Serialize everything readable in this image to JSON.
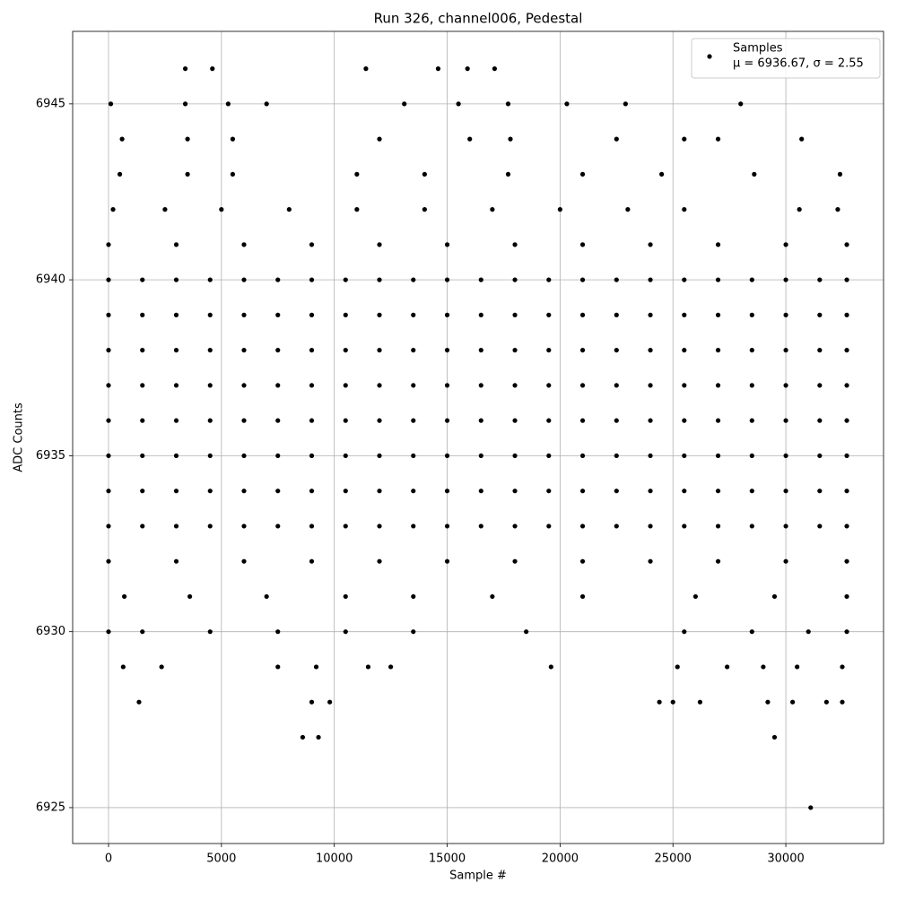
{
  "chart_data": {
    "type": "scatter",
    "title": "Run 326, channel006, Pedestal",
    "x_label": "Sample #",
    "y_label": "ADC Counts",
    "xlim": [
      -1589,
      34328
    ],
    "ylim": [
      6923.98,
      6947.06
    ],
    "xticks": [
      0,
      5000,
      10000,
      15000,
      20000,
      25000,
      30000
    ],
    "yticks": [
      6925,
      6930,
      6935,
      6940,
      6945
    ],
    "grid": true,
    "legend": "upper right",
    "legend_note": "μ = 6936.67, σ = 2.55",
    "series": [
      {
        "name": "Samples",
        "color": "#000000",
        "x": [
          0,
          1500,
          3000,
          4500,
          6000,
          7500,
          9000,
          10500,
          12000,
          13500,
          15000,
          16500,
          18000,
          19500,
          21000,
          22500,
          24000,
          25500,
          27000,
          28500,
          30000,
          31500,
          32700,
          0,
          1500,
          3000,
          4500,
          6000,
          7500,
          9000,
          10500,
          12000,
          13500,
          15000,
          16500,
          18000,
          19500,
          21000,
          22500,
          24000,
          25500,
          27000,
          28500,
          30000,
          31500,
          32700,
          0,
          1500,
          3000,
          4500,
          6000,
          7500,
          9000,
          10500,
          12000,
          13500,
          15000,
          16500,
          18000,
          19500,
          21000,
          22500,
          24000,
          25500,
          27000,
          28500,
          30000,
          31500,
          32700,
          0,
          1500,
          3000,
          4500,
          6000,
          7500,
          9000,
          10500,
          12000,
          13500,
          15000,
          16500,
          18000,
          19500,
          21000,
          22500,
          24000,
          25500,
          27000,
          28500,
          30000,
          31500,
          32700,
          0,
          1500,
          3000,
          4500,
          6000,
          7500,
          9000,
          10500,
          12000,
          13500,
          15000,
          16500,
          18000,
          19500,
          21000,
          22500,
          24000,
          25500,
          27000,
          28500,
          30000,
          31500,
          32700,
          0,
          1500,
          3000,
          4500,
          6000,
          7500,
          9000,
          10500,
          12000,
          13500,
          15000,
          16500,
          18000,
          19500,
          21000,
          22500,
          24000,
          25500,
          27000,
          28500,
          30000,
          31500,
          32700,
          0,
          1500,
          3000,
          4500,
          6000,
          7500,
          9000,
          10500,
          12000,
          13500,
          15000,
          16500,
          18000,
          19500,
          21000,
          22500,
          24000,
          25500,
          27000,
          28500,
          30000,
          31500,
          32700,
          0,
          1500,
          3000,
          4500,
          6000,
          7500,
          9000,
          10500,
          12000,
          13500,
          15000,
          16500,
          18000,
          19500,
          21000,
          22500,
          24000,
          25500,
          27000,
          28500,
          30000,
          31500,
          32700,
          0,
          3000,
          6000,
          9000,
          12000,
          15000,
          18000,
          21000,
          24000,
          27000,
          30000,
          32700,
          0,
          3000,
          6000,
          9000,
          12000,
          15000,
          18000,
          21000,
          24000,
          27000,
          30000,
          32700,
          700,
          3600,
          7000,
          10500,
          13500,
          17000,
          21000,
          26000,
          29500,
          32700,
          200,
          2500,
          5000,
          8000,
          11000,
          14000,
          17000,
          20000,
          23000,
          25500,
          30600,
          32300,
          500,
          3500,
          5500,
          11000,
          14000,
          17700,
          21000,
          24500,
          28600,
          32400,
          600,
          3500,
          5500,
          12000,
          16000,
          17800,
          22500,
          25500,
          27000,
          30700,
          100,
          3400,
          5300,
          7000,
          13100,
          15500,
          17700,
          20300,
          22900,
          28000,
          3400,
          4600,
          11400,
          14600,
          15900,
          17100,
          0,
          1500,
          4500,
          7500,
          10500,
          13500,
          18500,
          25500,
          28500,
          31000,
          32700,
          650,
          2350,
          7500,
          9200,
          11500,
          12500,
          19600,
          25200,
          27400,
          29000,
          30500,
          32500,
          1350,
          9000,
          9800,
          24400,
          25000,
          26200,
          29200,
          30300,
          31800,
          32500,
          8600,
          9300,
          29500,
          31100
        ],
        "values": [
          6940,
          6940,
          6940,
          6940,
          6940,
          6940,
          6940,
          6940,
          6940,
          6940,
          6940,
          6940,
          6940,
          6940,
          6940,
          6940,
          6940,
          6940,
          6940,
          6940,
          6940,
          6940,
          6940,
          6939,
          6939,
          6939,
          6939,
          6939,
          6939,
          6939,
          6939,
          6939,
          6939,
          6939,
          6939,
          6939,
          6939,
          6939,
          6939,
          6939,
          6939,
          6939,
          6939,
          6939,
          6939,
          6939,
          6938,
          6938,
          6938,
          6938,
          6938,
          6938,
          6938,
          6938,
          6938,
          6938,
          6938,
          6938,
          6938,
          6938,
          6938,
          6938,
          6938,
          6938,
          6938,
          6938,
          6938,
          6938,
          6938,
          6937,
          6937,
          6937,
          6937,
          6937,
          6937,
          6937,
          6937,
          6937,
          6937,
          6937,
          6937,
          6937,
          6937,
          6937,
          6937,
          6937,
          6937,
          6937,
          6937,
          6937,
          6937,
          6937,
          6936,
          6936,
          6936,
          6936,
          6936,
          6936,
          6936,
          6936,
          6936,
          6936,
          6936,
          6936,
          6936,
          6936,
          6936,
          6936,
          6936,
          6936,
          6936,
          6936,
          6936,
          6936,
          6936,
          6935,
          6935,
          6935,
          6935,
          6935,
          6935,
          6935,
          6935,
          6935,
          6935,
          6935,
          6935,
          6935,
          6935,
          6935,
          6935,
          6935,
          6935,
          6935,
          6935,
          6935,
          6935,
          6935,
          6934,
          6934,
          6934,
          6934,
          6934,
          6934,
          6934,
          6934,
          6934,
          6934,
          6934,
          6934,
          6934,
          6934,
          6934,
          6934,
          6934,
          6934,
          6934,
          6934,
          6934,
          6934,
          6934,
          6933,
          6933,
          6933,
          6933,
          6933,
          6933,
          6933,
          6933,
          6933,
          6933,
          6933,
          6933,
          6933,
          6933,
          6933,
          6933,
          6933,
          6933,
          6933,
          6933,
          6933,
          6933,
          6933,
          6932,
          6932,
          6932,
          6932,
          6932,
          6932,
          6932,
          6932,
          6932,
          6932,
          6932,
          6932,
          6941,
          6941,
          6941,
          6941,
          6941,
          6941,
          6941,
          6941,
          6941,
          6941,
          6941,
          6941,
          6931,
          6931,
          6931,
          6931,
          6931,
          6931,
          6931,
          6931,
          6931,
          6931,
          6942,
          6942,
          6942,
          6942,
          6942,
          6942,
          6942,
          6942,
          6942,
          6942,
          6942,
          6942,
          6943,
          6943,
          6943,
          6943,
          6943,
          6943,
          6943,
          6943,
          6943,
          6943,
          6944,
          6944,
          6944,
          6944,
          6944,
          6944,
          6944,
          6944,
          6944,
          6944,
          6945,
          6945,
          6945,
          6945,
          6945,
          6945,
          6945,
          6945,
          6945,
          6945,
          6946,
          6946,
          6946,
          6946,
          6946,
          6946,
          6930,
          6930,
          6930,
          6930,
          6930,
          6930,
          6930,
          6930,
          6930,
          6930,
          6930,
          6929,
          6929,
          6929,
          6929,
          6929,
          6929,
          6929,
          6929,
          6929,
          6929,
          6929,
          6929,
          6928,
          6928,
          6928,
          6928,
          6928,
          6928,
          6928,
          6928,
          6928,
          6928,
          6927,
          6927,
          6927,
          6925
        ]
      }
    ]
  }
}
